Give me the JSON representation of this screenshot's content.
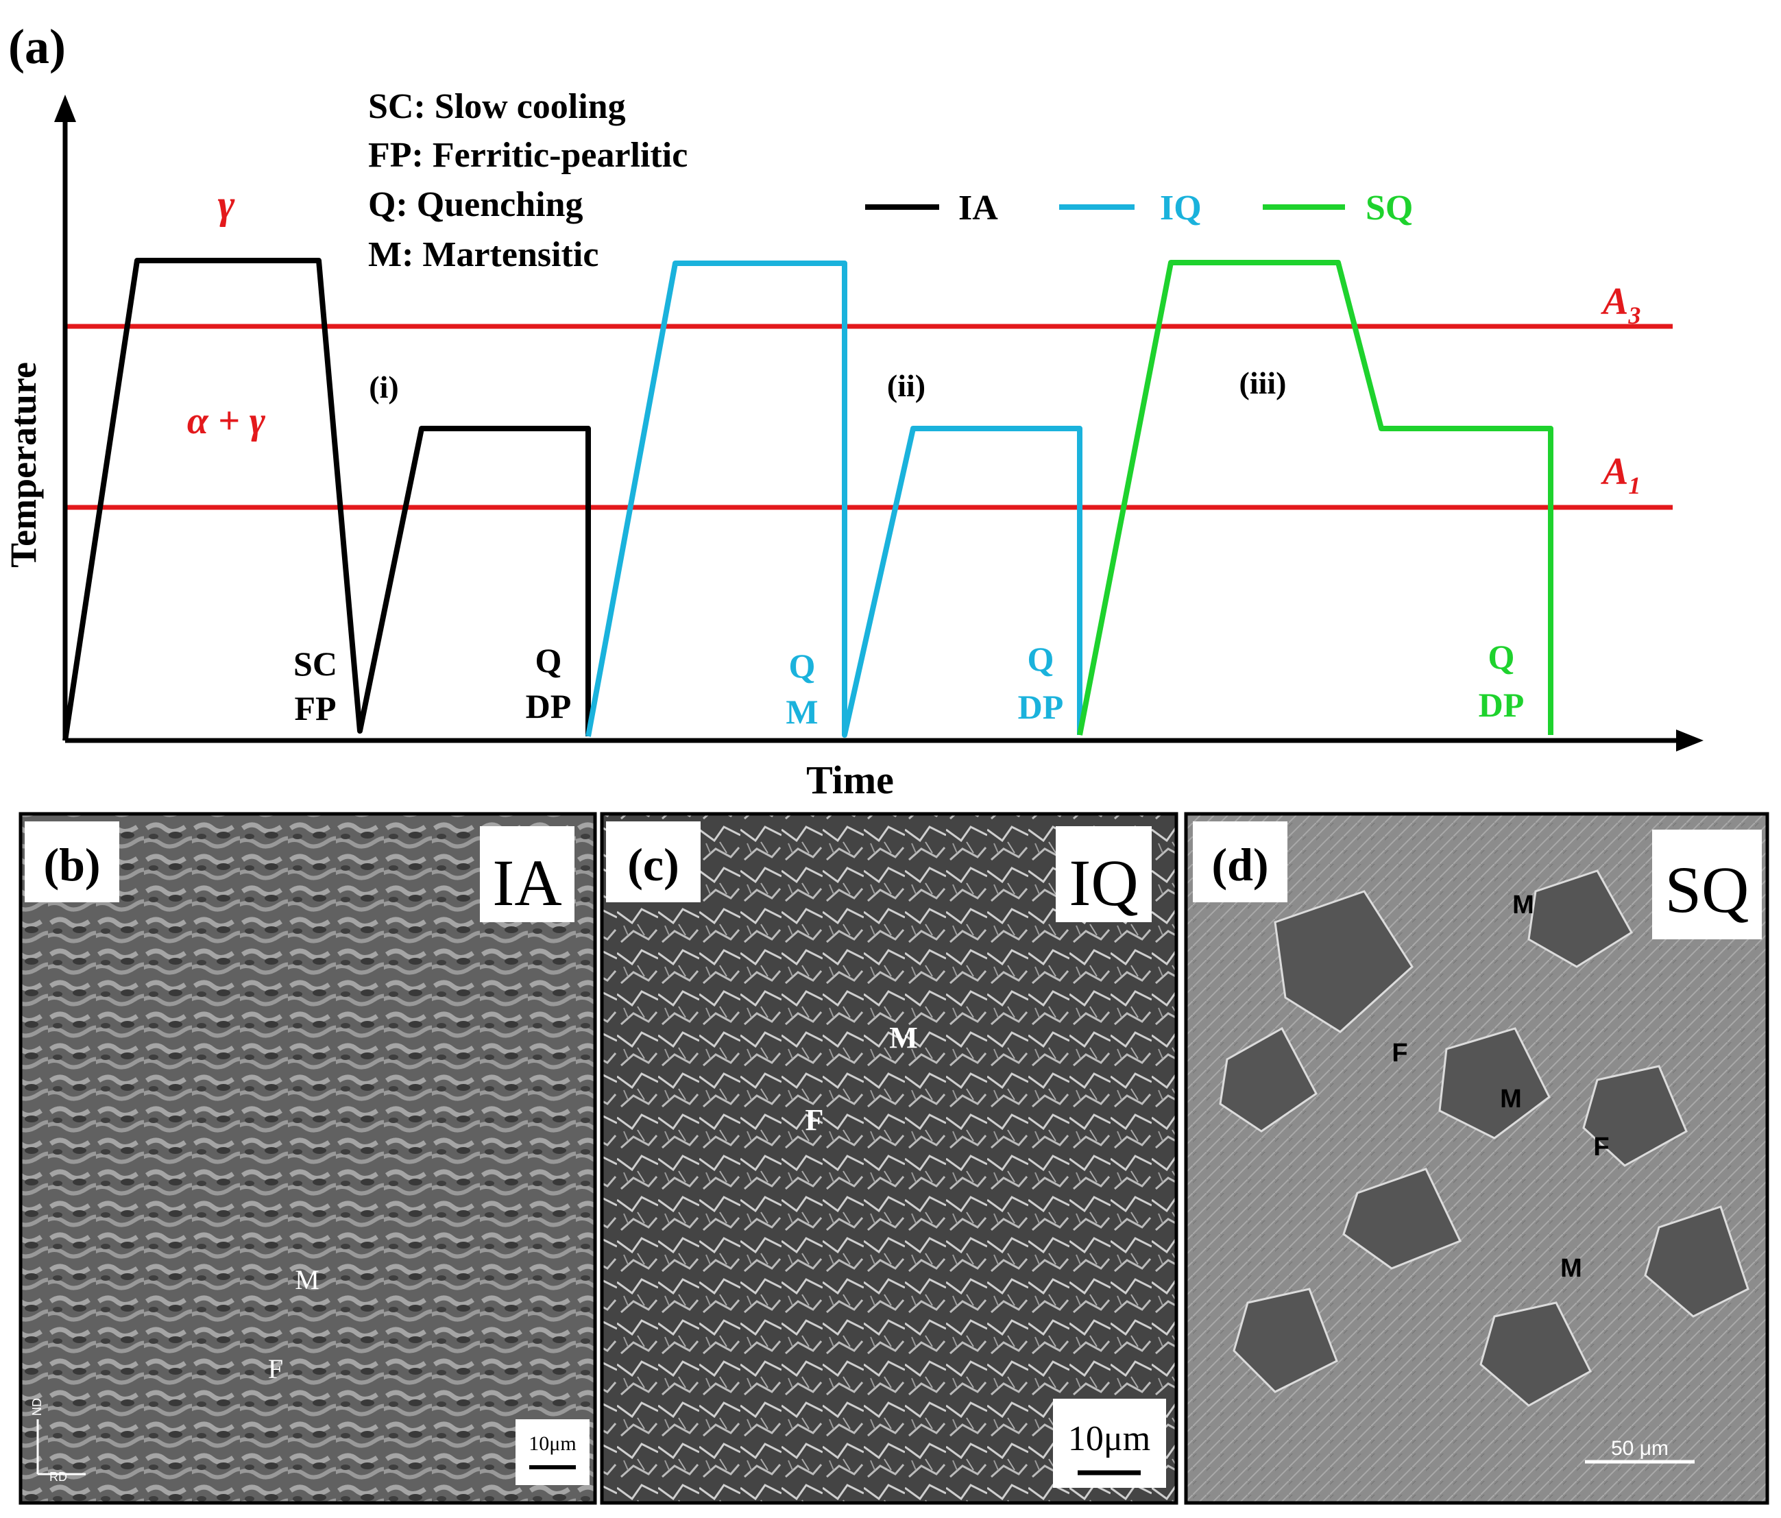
{
  "figure": {
    "panel_a": {
      "label": "(a)",
      "y_axis_label": "Temperature",
      "x_axis_label": "Time",
      "definitions": [
        "SC: Slow cooling",
        "FP: Ferritic-pearlitic",
        "Q: Quenching",
        "M: Martensitic"
      ],
      "legend": [
        {
          "name": "IA",
          "color": "#000000"
        },
        {
          "name": "IQ",
          "color": "#1ab2dc"
        },
        {
          "name": "SQ",
          "color": "#1ed22d"
        }
      ],
      "line_color": "#e3191c",
      "phase_labels": {
        "gamma": "γ",
        "alpha_gamma": "α + γ"
      },
      "critical_lines": [
        {
          "label": "A",
          "sub": "3"
        },
        {
          "label": "A",
          "sub": "1"
        }
      ],
      "routes": [
        {
          "numeral": "(i)",
          "color": "#000000"
        },
        {
          "numeral": "(ii)",
          "color": "#1ab2dc"
        },
        {
          "numeral": "(iii)",
          "color": "#1ed22d"
        }
      ],
      "step_labels": [
        {
          "line1": "SC",
          "line2": "FP",
          "color": "#000000"
        },
        {
          "line1": "Q",
          "line2": "DP",
          "color": "#000000"
        },
        {
          "line1": "Q",
          "line2": "M",
          "color": "#1ab2dc"
        },
        {
          "line1": "Q",
          "line2": "DP",
          "color": "#1ab2dc"
        },
        {
          "line1": "Q",
          "line2": "DP",
          "color": "#1ed22d"
        }
      ]
    },
    "micrographs": [
      {
        "label": "(b)",
        "tag": "IA",
        "phases": [
          "M",
          "F"
        ],
        "scale": "10μm",
        "axes": [
          "ND",
          "RD"
        ]
      },
      {
        "label": "(c)",
        "tag": "IQ",
        "phases": [
          "M",
          "F"
        ],
        "scale": "10μm"
      },
      {
        "label": "(d)",
        "tag": "SQ",
        "phases": [
          "M",
          "F",
          "M",
          "F",
          "M"
        ],
        "scale": "50 μm"
      }
    ]
  }
}
